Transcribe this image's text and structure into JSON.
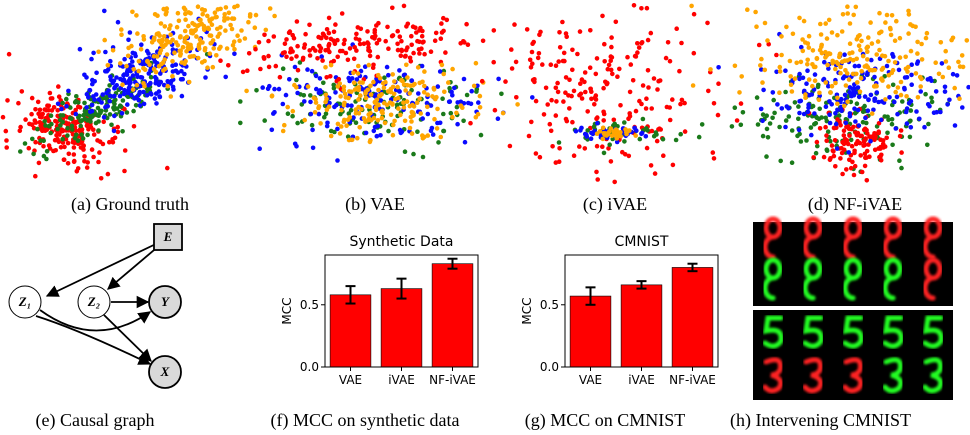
{
  "captions": [
    "(a) Ground truth",
    "(b) VAE",
    "(c) iVAE",
    "(d) NF-iVAE",
    "(e) Causal graph",
    "(f) MCC on synthetic data",
    "(g) MCC on CMNIST",
    "(h) Intervening CMNIST"
  ],
  "graph": {
    "nodes": [
      "E",
      "Z₁",
      "Z₂",
      "Y",
      "X"
    ]
  },
  "chart_data": [
    {
      "type": "bar",
      "title": "Synthetic Data",
      "y_label": "MCC",
      "categories": [
        "VAE",
        "iVAE",
        "NF-iVAE"
      ],
      "values": [
        0.58,
        0.63,
        0.83
      ],
      "errors": [
        0.07,
        0.08,
        0.04
      ],
      "color": "#ff0000",
      "ylim": [
        0,
        0.9
      ],
      "yticks": [
        {
          "value": 0,
          "label": "0.0"
        },
        {
          "value": 0.5,
          "label": "0.5"
        }
      ]
    },
    {
      "type": "bar",
      "title": "CMNIST",
      "y_label": "MCC",
      "categories": [
        "VAE",
        "iVAE",
        "NF-iVAE"
      ],
      "values": [
        0.57,
        0.66,
        0.8
      ],
      "errors": [
        0.07,
        0.03,
        0.03
      ],
      "color": "#ff0000",
      "ylim": [
        0,
        0.9
      ],
      "yticks": [
        {
          "value": 0,
          "label": "0.0"
        },
        {
          "value": 0.5,
          "label": "0.5"
        }
      ]
    }
  ]
}
